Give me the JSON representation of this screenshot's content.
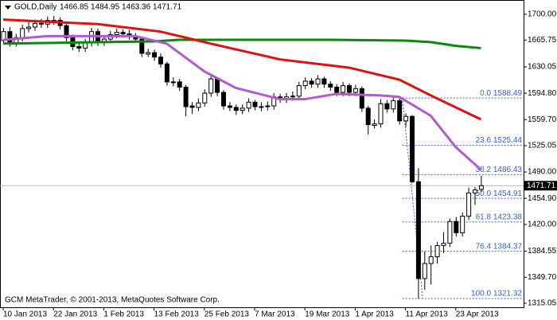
{
  "chart_data": {
    "type": "candlestick",
    "symbol": "GOLD,Daily",
    "footer": "GCM MetaTrader, © 2001-2013, MetaQuotes Software Corp.",
    "categories": [
      "10 Jan 2013",
      null,
      null,
      null,
      null,
      null,
      null,
      null,
      "22 Jan 2013",
      null,
      null,
      null,
      null,
      null,
      null,
      null,
      "1 Feb 2013",
      null,
      null,
      null,
      null,
      null,
      null,
      null,
      "13 Feb 2013",
      null,
      null,
      null,
      null,
      null,
      null,
      null,
      "25 Feb 2013",
      null,
      null,
      null,
      null,
      null,
      null,
      null,
      "7 Mar 2013",
      null,
      null,
      null,
      null,
      null,
      null,
      null,
      "19 Mar 2013",
      null,
      null,
      null,
      null,
      null,
      null,
      null,
      "1 Apr 2013",
      null,
      null,
      null,
      null,
      null,
      null,
      null,
      "11 Apr 2013",
      null,
      null,
      null,
      null,
      null,
      null,
      null,
      "23 Apr 2013",
      null,
      null,
      null,
      null
    ],
    "ohlc": {
      "open": [
        1665,
        1677,
        1662,
        1669,
        1681,
        1683,
        1688,
        1687,
        1691,
        1692,
        1685,
        1669,
        1657,
        1655,
        1662,
        1677,
        1663,
        1667,
        1673,
        1676,
        1674,
        1671,
        1667,
        1647,
        1649,
        1643,
        1634,
        1609,
        1610,
        1603,
        1578,
        1576,
        1582,
        1595,
        1614,
        1596,
        1578,
        1576,
        1572,
        1575,
        1583,
        1576,
        1577,
        1578,
        1590,
        1587,
        1590,
        1591,
        1605,
        1611,
        1607,
        1614,
        1607,
        1603,
        1596,
        1605,
        1596,
        1601,
        1575,
        1552,
        1554,
        1581,
        1574,
        1585,
        1558,
        1564,
        1477,
        1348,
        1368,
        1377,
        1392,
        1395,
        1424,
        1409,
        1431,
        1462,
        1466.85
      ],
      "high": [
        1682,
        1683,
        1674,
        1686,
        1690,
        1693,
        1694,
        1697,
        1698,
        1696,
        1688,
        1673,
        1662,
        1667,
        1682,
        1681,
        1672,
        1678,
        1681,
        1680,
        1679,
        1675,
        1670,
        1654,
        1653,
        1648,
        1637,
        1616,
        1614,
        1606,
        1583,
        1588,
        1600,
        1619,
        1616,
        1599,
        1583,
        1580,
        1580,
        1588,
        1586,
        1583,
        1584,
        1595,
        1594,
        1595,
        1597,
        1610,
        1616,
        1615,
        1619,
        1617,
        1611,
        1607,
        1610,
        1608,
        1606,
        1604,
        1578,
        1560,
        1587,
        1586,
        1590,
        1588,
        1568,
        1566,
        1495,
        1384,
        1392,
        1397,
        1410,
        1428,
        1430,
        1436,
        1469,
        1470,
        1484.95
      ],
      "low": [
        1660,
        1657,
        1657,
        1664,
        1676,
        1678,
        1682,
        1682,
        1686,
        1680,
        1664,
        1652,
        1650,
        1650,
        1657,
        1658,
        1658,
        1662,
        1668,
        1669,
        1666,
        1662,
        1643,
        1643,
        1638,
        1629,
        1605,
        1604,
        1598,
        1564,
        1567,
        1571,
        1577,
        1590,
        1591,
        1573,
        1571,
        1566,
        1567,
        1570,
        1572,
        1571,
        1572,
        1573,
        1582,
        1582,
        1585,
        1586,
        1600,
        1602,
        1602,
        1602,
        1598,
        1591,
        1591,
        1591,
        1591,
        1570,
        1540,
        1548,
        1549,
        1569,
        1569,
        1553,
        1550,
        1475,
        1321,
        1333,
        1340,
        1368,
        1382,
        1390,
        1404,
        1404,
        1426,
        1446,
        1463.36
      ],
      "close": [
        1677,
        1662,
        1669,
        1681,
        1683,
        1688,
        1687,
        1692,
        1692,
        1685,
        1669,
        1657,
        1655,
        1662,
        1677,
        1663,
        1667,
        1673,
        1676,
        1674,
        1671,
        1667,
        1648,
        1649,
        1643,
        1634,
        1610,
        1610,
        1603,
        1577,
        1576,
        1582,
        1595,
        1614,
        1596,
        1578,
        1576,
        1572,
        1575,
        1583,
        1577,
        1577,
        1578,
        1590,
        1587,
        1590,
        1591,
        1605,
        1611,
        1607,
        1614,
        1607,
        1603,
        1596,
        1605,
        1596,
        1601,
        1575,
        1553,
        1554,
        1581,
        1574,
        1585,
        1558,
        1564,
        1477,
        1348,
        1368,
        1377,
        1392,
        1395,
        1424,
        1409,
        1431,
        1462,
        1466,
        1471.71
      ]
    },
    "bull_color": "#ffffff",
    "bear_color": "#000000",
    "wick_color": "#000000",
    "series": [
      {
        "color": "#0a8a0a",
        "x": [
          0,
          8,
          16,
          24,
          28,
          40,
          52,
          64,
          68,
          72,
          76
        ],
        "values": [
          1661,
          1662,
          1663,
          1664,
          1666,
          1666,
          1666,
          1665,
          1663,
          1658,
          1655
        ]
      },
      {
        "color": "#e01010",
        "x": [
          0,
          15,
          25,
          33,
          44,
          55,
          63,
          68,
          76
        ],
        "values": [
          1693,
          1687,
          1677,
          1661,
          1640,
          1629,
          1613,
          1592,
          1560
        ]
      },
      {
        "color": "#b05ccf",
        "x": [
          0,
          7,
          21,
          26,
          32,
          37,
          44,
          48,
          53,
          60,
          63,
          68,
          72,
          76
        ],
        "values": [
          1666,
          1671,
          1671,
          1661,
          1624,
          1602,
          1587,
          1587,
          1594,
          1592,
          1590,
          1565,
          1523,
          1493
        ]
      }
    ],
    "fib_levels": [
      {
        "value": 1588.49,
        "label": "0.0 1588.49"
      },
      {
        "value": 1525.44,
        "label": "23.6 1525.44"
      },
      {
        "value": 1486.43,
        "label": "38.2 1486.43"
      },
      {
        "value": 1454.91,
        "label": "50.0 1454.91"
      },
      {
        "value": 1423.38,
        "label": "61.8 1423.38"
      },
      {
        "value": 1384.37,
        "label": "76.4 1384.37"
      },
      {
        "value": 1321.32,
        "label": "100.0 1321.32"
      }
    ],
    "fib_color": "#3a5fcd",
    "ylim": [
      1309.74,
      1716.97
    ],
    "yticks": [
      {
        "value": 1700,
        "label": "1700.00"
      },
      {
        "value": 1665.75,
        "label": "1665.75"
      },
      {
        "value": 1630.05,
        "label": "1630.05"
      },
      {
        "value": 1594.8,
        "label": "1594.80"
      },
      {
        "value": 1559.7,
        "label": "1559.70"
      },
      {
        "value": 1525.05,
        "label": "1525.05"
      },
      {
        "value": 1490,
        "label": "1490.00"
      },
      {
        "value": 1454.9,
        "label": "1454.90"
      },
      {
        "value": 1420,
        "label": "1420.00"
      },
      {
        "value": 1384.55,
        "label": "1384.55"
      },
      {
        "value": 1349.7,
        "label": "1349.70"
      },
      {
        "value": 1315.05,
        "label": "1315.05"
      }
    ]
  }
}
